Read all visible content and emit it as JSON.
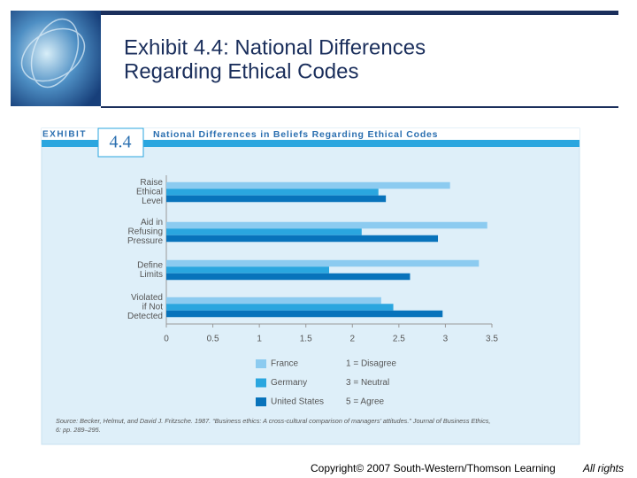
{
  "slide_title": [
    "Exhibit 4.4: National Differences",
    "Regarding Ethical Codes"
  ],
  "exhibit_label": "EXHIBIT",
  "exhibit_number": "4.4",
  "chart_data": {
    "type": "bar",
    "orientation": "horizontal",
    "title": "National Differences in Beliefs Regarding Ethical Codes",
    "categories": [
      [
        "Raise",
        "Ethical",
        "Level"
      ],
      [
        "Aid in",
        "Refusing",
        "Pressure"
      ],
      [
        "Define",
        "Limits"
      ],
      [
        "Violated",
        "if Not",
        "Detected"
      ]
    ],
    "series": [
      {
        "name": "France",
        "color": "#8ccbf0",
        "values": [
          3.05,
          3.45,
          3.36,
          2.31
        ]
      },
      {
        "name": "Germany",
        "color": "#2aa6df",
        "values": [
          2.28,
          2.1,
          1.75,
          2.44
        ]
      },
      {
        "name": "United States",
        "color": "#0873bb",
        "values": [
          2.36,
          2.92,
          2.62,
          2.97
        ]
      }
    ],
    "xlim": [
      0,
      3.5
    ],
    "xticks": [
      0,
      0.5,
      1,
      1.5,
      2,
      2.5,
      3,
      3.5
    ],
    "scale_notes": [
      "1 = Disagree",
      "3 = Neutral",
      "5 = Agree"
    ],
    "source": [
      "Source:  Becker, Helmut, and David J. Fritzsche. 1987. “Business ethics: A cross-cultural comparison of managers’ attitudes.” Journal of Business Ethics,",
      "6: pp. 289–295."
    ]
  },
  "copyright": "Copyright© 2007 South-Western/Thomson Learning",
  "rights": "All rights"
}
